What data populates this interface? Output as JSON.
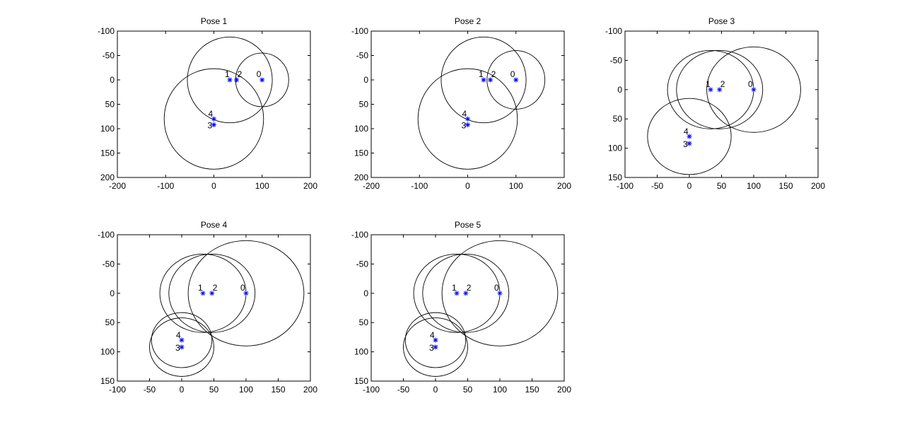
{
  "colors": {
    "circle": "#000000",
    "marker": "#0000ff",
    "axes": "#000000",
    "background": "#ffffff"
  },
  "chart_data": [
    {
      "type": "scatter",
      "title": "Pose 1",
      "xlim": [
        -200,
        200
      ],
      "ylim": [
        -100,
        200
      ],
      "y_reversed": true,
      "xticks": [
        -200,
        -100,
        0,
        100,
        200
      ],
      "yticks": [
        -100,
        -50,
        0,
        50,
        100,
        150,
        200
      ],
      "grid": false,
      "points": [
        {
          "label": "0",
          "x": 100,
          "y": 0
        },
        {
          "label": "1",
          "x": 33,
          "y": 0
        },
        {
          "label": "2",
          "x": 47,
          "y": 0
        },
        {
          "label": "3",
          "x": 0,
          "y": 92
        },
        {
          "label": "4",
          "x": 0,
          "y": 80
        }
      ],
      "circles": [
        {
          "cx": 33,
          "cy": 0,
          "r": 88
        },
        {
          "cx": 100,
          "cy": 0,
          "r": 55
        },
        {
          "cx": 0,
          "cy": 80,
          "r": 103
        }
      ]
    },
    {
      "type": "scatter",
      "title": "Pose 2",
      "xlim": [
        -200,
        200
      ],
      "ylim": [
        -100,
        200
      ],
      "y_reversed": true,
      "xticks": [
        -200,
        -100,
        0,
        100,
        200
      ],
      "yticks": [
        -100,
        -50,
        0,
        50,
        100,
        150,
        200
      ],
      "grid": false,
      "points": [
        {
          "label": "0",
          "x": 100,
          "y": 0
        },
        {
          "label": "1",
          "x": 33,
          "y": 0
        },
        {
          "label": "2",
          "x": 47,
          "y": 0
        },
        {
          "label": "3",
          "x": 0,
          "y": 92
        },
        {
          "label": "4",
          "x": 0,
          "y": 80
        }
      ],
      "circles": [
        {
          "cx": 33,
          "cy": 0,
          "r": 88
        },
        {
          "cx": 100,
          "cy": 0,
          "r": 60
        },
        {
          "cx": 0,
          "cy": 80,
          "r": 103
        }
      ]
    },
    {
      "type": "scatter",
      "title": "Pose 3",
      "xlim": [
        -100,
        200
      ],
      "ylim": [
        -100,
        150
      ],
      "y_reversed": true,
      "xticks": [
        -100,
        -50,
        0,
        50,
        100,
        150,
        200
      ],
      "yticks": [
        -100,
        -50,
        0,
        50,
        100,
        150
      ],
      "grid": false,
      "points": [
        {
          "label": "0",
          "x": 100,
          "y": 0
        },
        {
          "label": "1",
          "x": 33,
          "y": 0
        },
        {
          "label": "2",
          "x": 47,
          "y": 0
        },
        {
          "label": "3",
          "x": 0,
          "y": 92
        },
        {
          "label": "4",
          "x": 0,
          "y": 80
        }
      ],
      "circles": [
        {
          "cx": 33,
          "cy": 0,
          "r": 67
        },
        {
          "cx": 47,
          "cy": 0,
          "r": 67
        },
        {
          "cx": 100,
          "cy": 0,
          "r": 73
        },
        {
          "cx": 0,
          "cy": 80,
          "r": 65
        }
      ]
    },
    {
      "type": "scatter",
      "title": "Pose 4",
      "xlim": [
        -100,
        200
      ],
      "ylim": [
        -100,
        150
      ],
      "y_reversed": true,
      "xticks": [
        -100,
        -50,
        0,
        50,
        100,
        150,
        200
      ],
      "yticks": [
        -100,
        -50,
        0,
        50,
        100,
        150
      ],
      "grid": false,
      "points": [
        {
          "label": "0",
          "x": 100,
          "y": 0
        },
        {
          "label": "1",
          "x": 33,
          "y": 0
        },
        {
          "label": "2",
          "x": 47,
          "y": 0
        },
        {
          "label": "3",
          "x": 0,
          "y": 92
        },
        {
          "label": "4",
          "x": 0,
          "y": 80
        }
      ],
      "circles": [
        {
          "cx": 33,
          "cy": 0,
          "r": 67
        },
        {
          "cx": 47,
          "cy": 0,
          "r": 67
        },
        {
          "cx": 100,
          "cy": 0,
          "r": 90
        },
        {
          "cx": 0,
          "cy": 80,
          "r": 47
        },
        {
          "cx": 0,
          "cy": 92,
          "r": 50
        }
      ]
    },
    {
      "type": "scatter",
      "title": "Pose 5",
      "xlim": [
        -100,
        200
      ],
      "ylim": [
        -100,
        150
      ],
      "y_reversed": true,
      "xticks": [
        -100,
        -50,
        0,
        50,
        100,
        150,
        200
      ],
      "yticks": [
        -100,
        -50,
        0,
        50,
        100,
        150
      ],
      "grid": false,
      "points": [
        {
          "label": "0",
          "x": 100,
          "y": 0
        },
        {
          "label": "1",
          "x": 33,
          "y": 0
        },
        {
          "label": "2",
          "x": 47,
          "y": 0
        },
        {
          "label": "3",
          "x": 0,
          "y": 92
        },
        {
          "label": "4",
          "x": 0,
          "y": 80
        }
      ],
      "circles": [
        {
          "cx": 33,
          "cy": 0,
          "r": 67
        },
        {
          "cx": 47,
          "cy": 0,
          "r": 67
        },
        {
          "cx": 100,
          "cy": 0,
          "r": 90
        },
        {
          "cx": 0,
          "cy": 80,
          "r": 47
        },
        {
          "cx": 0,
          "cy": 92,
          "r": 50
        }
      ]
    }
  ]
}
